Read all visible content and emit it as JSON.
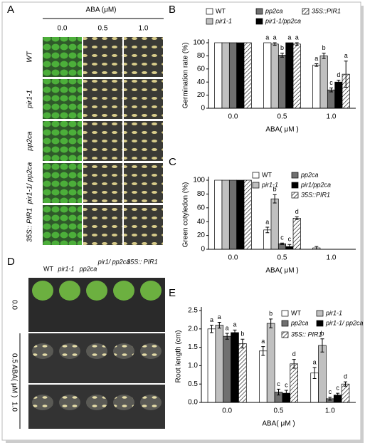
{
  "panel_a": {
    "label": "A",
    "axis_title": "ABA (μM)",
    "columns": [
      "0.0",
      "0.5",
      "1.0"
    ],
    "rows": [
      "WT",
      "pir1-1",
      "pp2ca",
      "pir1-1/ pp2ca",
      "35S:: PIR1"
    ]
  },
  "panel_d": {
    "label": "D",
    "axis_title": "ABA( μM )",
    "columns": [
      "WT",
      "pir1-1",
      "pp2ca",
      "pir1/ pp2ca",
      "35S:: PIR1"
    ],
    "rows": [
      "0.0",
      "0.5",
      "1.0"
    ]
  },
  "chart_data": [
    {
      "type": "bar",
      "panel": "B",
      "y_label": "Germination rate (%)",
      "x_label": "ABA( μM )",
      "categories": [
        "0.0",
        "0.5",
        "1.0"
      ],
      "ylim": [
        0,
        100
      ],
      "yticks": [
        0,
        20,
        40,
        60,
        80,
        100
      ],
      "series": [
        {
          "name": "WT",
          "color": "#ffffff",
          "values": [
            100,
            100,
            66
          ],
          "errors": [
            0,
            0,
            2
          ],
          "labels": [
            null,
            "a",
            "a"
          ]
        },
        {
          "name": "pir1-1",
          "color": "#c0c0c0",
          "values": [
            100,
            98,
            80
          ],
          "errors": [
            0,
            2,
            4
          ],
          "labels": [
            null,
            "a",
            "b"
          ]
        },
        {
          "name": "pp2ca",
          "color": "#707070",
          "values": [
            100,
            81,
            28
          ],
          "errors": [
            0,
            3,
            3
          ],
          "labels": [
            null,
            "b",
            "c"
          ]
        },
        {
          "name": "pir1-1/pp2ca",
          "color": "#000000",
          "values": [
            100,
            100,
            40
          ],
          "errors": [
            0,
            0,
            3
          ],
          "labels": [
            null,
            "a",
            "d"
          ]
        },
        {
          "name": "35S::PIR1",
          "color": "#ffffff",
          "hatch": true,
          "values": [
            100,
            98,
            52
          ],
          "errors": [
            0,
            2,
            20
          ],
          "labels": [
            null,
            "a",
            "a"
          ]
        }
      ]
    },
    {
      "type": "bar",
      "panel": "C",
      "y_label": "Green cotyledon (%)",
      "x_label": "ABA( μM )",
      "categories": [
        "0.0",
        "0.5",
        "1.0"
      ],
      "ylim": [
        0,
        100
      ],
      "yticks": [
        0,
        20,
        40,
        60,
        80,
        100
      ],
      "series": [
        {
          "name": "WT",
          "color": "#ffffff",
          "values": [
            100,
            28,
            2
          ],
          "errors": [
            0,
            4,
            2
          ],
          "labels": [
            null,
            "a",
            null
          ]
        },
        {
          "name": "pir1-1",
          "color": "#c0c0c0",
          "values": [
            100,
            73,
            0
          ],
          "errors": [
            0,
            6,
            0
          ],
          "labels": [
            null,
            "b",
            null
          ]
        },
        {
          "name": "pp2ca",
          "color": "#707070",
          "values": [
            100,
            8,
            0
          ],
          "errors": [
            0,
            1,
            0
          ],
          "labels": [
            null,
            "c",
            null
          ]
        },
        {
          "name": "pir1/pp2ca",
          "color": "#000000",
          "values": [
            100,
            4,
            0
          ],
          "errors": [
            0,
            3,
            0
          ],
          "labels": [
            null,
            "c",
            null
          ]
        },
        {
          "name": "35S::PIR1",
          "color": "#ffffff",
          "hatch": true,
          "values": [
            100,
            45,
            0
          ],
          "errors": [
            0,
            2,
            0
          ],
          "labels": [
            null,
            "d",
            null
          ]
        }
      ]
    },
    {
      "type": "bar",
      "panel": "E",
      "y_label": "Root length (cm)",
      "x_label": "ABA( μM )",
      "categories": [
        "0.0",
        "0.5",
        "1.0"
      ],
      "ylim": [
        0,
        2.5
      ],
      "yticks": [
        {
          "value": 0,
          "label": "0.0"
        },
        0.5,
        {
          "value": 1,
          "label": "1.0"
        },
        1.5,
        {
          "value": 2,
          "label": "2.0"
        },
        2.5
      ],
      "series": [
        {
          "name": "WT",
          "color": "#ffffff",
          "values": [
            2.0,
            1.4,
            0.8
          ],
          "errors": [
            0.1,
            0.12,
            0.15
          ],
          "labels": [
            "a",
            "a",
            "a"
          ]
        },
        {
          "name": "pir1-1",
          "color": "#c0c0c0",
          "values": [
            2.1,
            2.15,
            1.55
          ],
          "errors": [
            0.08,
            0.12,
            0.18
          ],
          "labels": [
            "a",
            "b",
            "b"
          ]
        },
        {
          "name": "pp2ca",
          "color": "#707070",
          "values": [
            1.8,
            0.28,
            0.1
          ],
          "errors": [
            0.08,
            0.08,
            0.04
          ],
          "labels": [
            "a",
            "c",
            "c"
          ]
        },
        {
          "name": "pir1-1/ pp2ca",
          "color": "#000000",
          "values": [
            1.9,
            0.25,
            0.2
          ],
          "errors": [
            0.07,
            0.08,
            0.05
          ],
          "labels": [
            "a",
            "c",
            "c"
          ]
        },
        {
          "name": "35S:: PIR1",
          "color": "#ffffff",
          "hatch": true,
          "values": [
            1.6,
            1.05,
            0.5
          ],
          "errors": [
            0.12,
            0.12,
            0.06
          ],
          "labels": [
            "b",
            "d",
            "d"
          ]
        }
      ]
    }
  ]
}
